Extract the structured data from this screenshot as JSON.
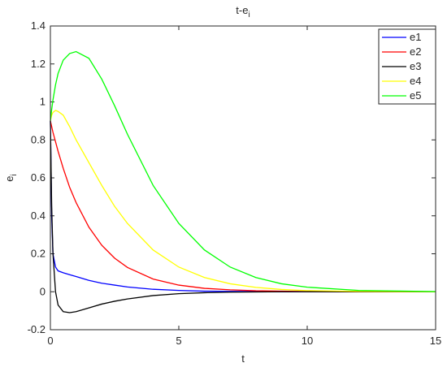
{
  "chart_data": {
    "type": "line",
    "title": {
      "text": "t-e",
      "subscript": "i"
    },
    "xlabel": "t",
    "ylabel": {
      "text": "e",
      "subscript": "i"
    },
    "x": [
      0,
      0.05,
      0.1,
      0.2,
      0.3,
      0.5,
      0.75,
      1,
      1.5,
      2,
      2.5,
      3,
      4,
      5,
      6,
      7,
      8,
      9,
      10,
      12,
      15
    ],
    "series": [
      {
        "name": "e1",
        "color": "#0000ff",
        "values": [
          0.9,
          0.4,
          0.2,
          0.13,
          0.11,
          0.1,
          0.09,
          0.08,
          0.06,
          0.045,
          0.035,
          0.025,
          0.013,
          0.007,
          0.003,
          0.002,
          0.001,
          0,
          0,
          0,
          0
        ]
      },
      {
        "name": "e2",
        "color": "#ff0000",
        "values": [
          0.9,
          0.87,
          0.84,
          0.79,
          0.74,
          0.65,
          0.55,
          0.47,
          0.34,
          0.245,
          0.177,
          0.128,
          0.067,
          0.035,
          0.018,
          0.01,
          0.005,
          0.003,
          0.001,
          0,
          0
        ]
      },
      {
        "name": "e3",
        "color": "#000000",
        "values": [
          0.9,
          0.45,
          0.2,
          0.0,
          -0.07,
          -0.105,
          -0.11,
          -0.105,
          -0.085,
          -0.065,
          -0.05,
          -0.038,
          -0.02,
          -0.01,
          -0.005,
          -0.002,
          -0.001,
          0,
          0,
          0,
          0
        ]
      },
      {
        "name": "e4",
        "color": "#ffff00",
        "values": [
          0.9,
          0.93,
          0.945,
          0.955,
          0.95,
          0.93,
          0.87,
          0.8,
          0.68,
          0.56,
          0.45,
          0.36,
          0.22,
          0.13,
          0.075,
          0.042,
          0.023,
          0.012,
          0.006,
          0.002,
          0
        ]
      },
      {
        "name": "e5",
        "color": "#00ff00",
        "values": [
          0.9,
          0.96,
          1.01,
          1.09,
          1.15,
          1.22,
          1.255,
          1.265,
          1.23,
          1.12,
          0.98,
          0.83,
          0.56,
          0.36,
          0.22,
          0.13,
          0.075,
          0.042,
          0.024,
          0.007,
          0.001
        ]
      }
    ],
    "xlim": [
      0,
      15
    ],
    "xticks": [
      0,
      5,
      10,
      15
    ],
    "ylim": [
      -0.2,
      1.4
    ],
    "yticks": [
      -0.2,
      0,
      0.2,
      0.4,
      0.6,
      0.8,
      1,
      1.2,
      1.4
    ],
    "grid": false,
    "legend": "top-right"
  }
}
